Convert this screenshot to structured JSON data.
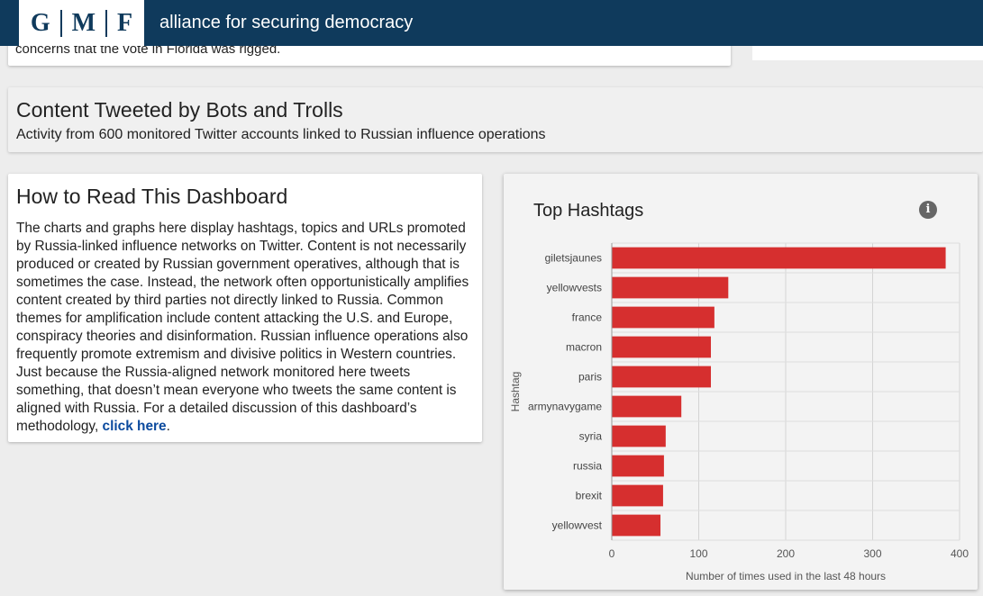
{
  "header": {
    "logo_letters": [
      "G",
      "M",
      "F"
    ],
    "brand": "alliance for securing democracy"
  },
  "previous_card": {
    "text": "concerns that the vote in Florida was rigged."
  },
  "section": {
    "title": "Content Tweeted by Bots and Trolls",
    "subtitle": "Activity from 600 monitored Twitter accounts linked to Russian influence operations"
  },
  "howto": {
    "title": "How to Read This Dashboard",
    "body": "The charts and graphs here display hashtags, topics and URLs promoted by Russia-linked influence networks on Twitter. Content is not necessarily produced or created by Russian government operatives, although that is sometimes the case. Instead, the network often opportunistically amplifies content created by third parties not directly linked to Russia. Common themes for amplification include content attacking the U.S. and Europe, conspiracy theories and disinformation. Russian influence operations also frequently promote extremism and divisive politics in Western countries. Just because the Russia-aligned network monitored here tweets something, that doesn’t mean everyone who tweets the same content is aligned with Russia. For a detailed discussion of this dashboard’s methodology,",
    "link_text": "click here",
    "trailing": "."
  },
  "chart_card": {
    "title": "Top Hashtags",
    "info_icon": "info-icon"
  },
  "chart_data": {
    "type": "bar",
    "orientation": "horizontal",
    "categories": [
      "giletsjaunes",
      "yellowvests",
      "france",
      "macron",
      "paris",
      "armynavygame",
      "syria",
      "russia",
      "brexit",
      "yellowvest"
    ],
    "values": [
      384,
      134,
      118,
      114,
      114,
      80,
      62,
      60,
      59,
      56
    ],
    "xlabel": "Number of times used in the last 48 hours",
    "ylabel": "Hashtag",
    "xlim": [
      0,
      400
    ],
    "xticks": [
      0,
      100,
      200,
      300,
      400
    ],
    "grid": true,
    "bar_color": "#d62f2f"
  }
}
